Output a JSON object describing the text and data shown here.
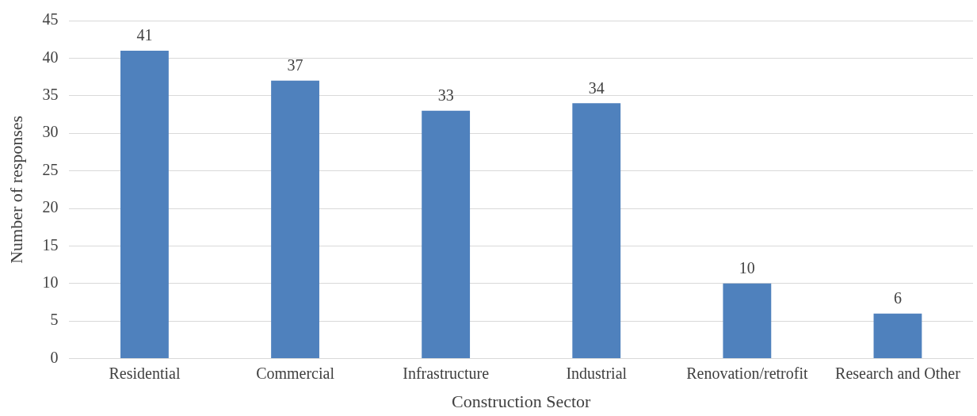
{
  "chart_data": {
    "type": "bar",
    "xlabel": "Construction Sector",
    "ylabel": "Number of responses",
    "categories": [
      "Residential",
      "Commercial",
      "Infrastructure",
      "Industrial",
      "Renovation/retrofit",
      "Research and Other"
    ],
    "values": [
      41,
      37,
      33,
      34,
      10,
      6
    ],
    "color": "#4f81bd",
    "ylim": [
      0,
      45
    ],
    "yticks": [
      0,
      5,
      10,
      15,
      20,
      25,
      30,
      35,
      40,
      45
    ],
    "grid": "y",
    "data_labels": true,
    "legend": false
  }
}
